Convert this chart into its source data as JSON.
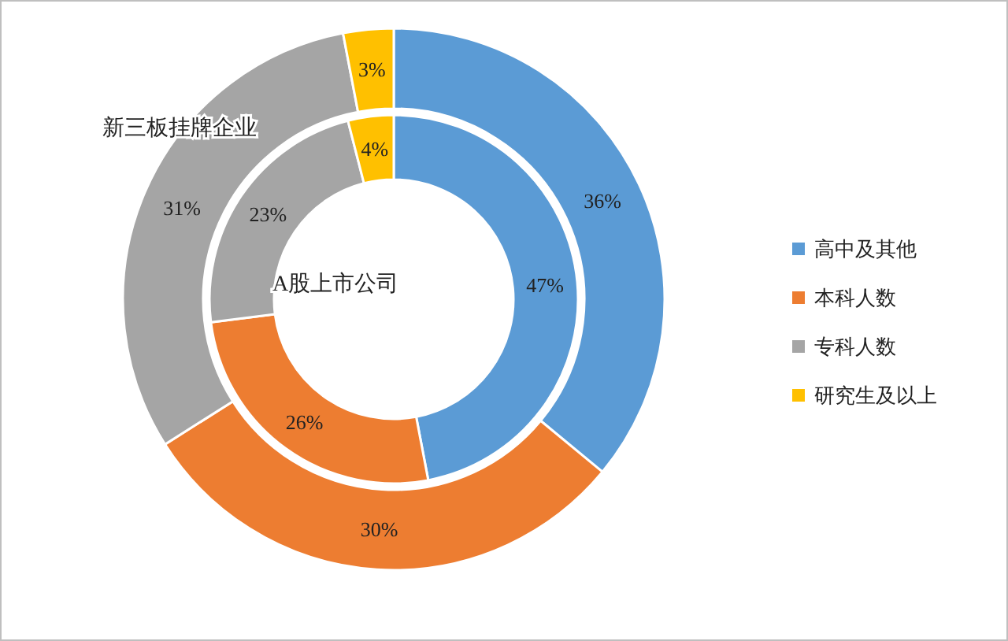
{
  "chart_data": {
    "type": "donut",
    "categories": [
      "高中及其他",
      "本科人数",
      "专科人数",
      "研究生及以上"
    ],
    "colors": [
      "#5b9bd5",
      "#ed7d31",
      "#a5a5a5",
      "#ffc000"
    ],
    "legend": "right",
    "series": [
      {
        "name": "新三板挂牌企业",
        "values": [
          36,
          30,
          31,
          3
        ],
        "value_labels": [
          "36%",
          "30%",
          "31%",
          "3%"
        ]
      },
      {
        "name": "A股上市公司",
        "values": [
          47,
          26,
          23,
          4
        ],
        "value_labels": [
          "47%",
          "26%",
          "23%",
          "4%"
        ]
      }
    ]
  }
}
